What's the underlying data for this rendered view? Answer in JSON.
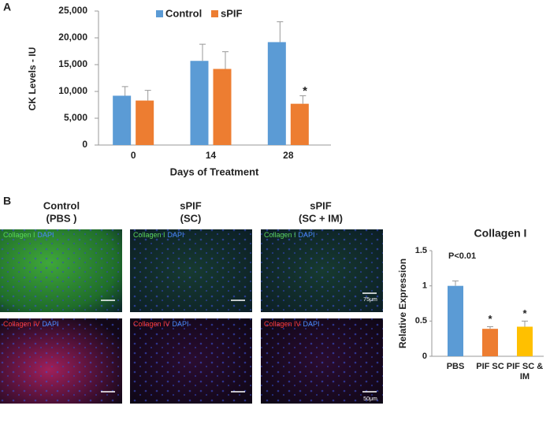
{
  "figure": {
    "panel_labels": [
      "A",
      "B"
    ],
    "columns": [
      {
        "title": "Control",
        "subtitle": "(PBS )"
      },
      {
        "title": "sPIF",
        "subtitle": "(SC)"
      },
      {
        "title": "sPIF",
        "subtitle": "(SC + IM)"
      }
    ],
    "rows": [
      {
        "stain": "Collagen I",
        "counter": "DAPI",
        "scale_bar": "75μm"
      },
      {
        "stain": "Collagen IV",
        "counter": "DAPI",
        "scale_bar": "50μm"
      }
    ]
  },
  "chart_data": [
    {
      "type": "bar",
      "categories": [
        "0",
        "14",
        "28"
      ],
      "series": [
        {
          "name": "Control",
          "color": "#5b9bd5",
          "values": [
            9200,
            15700,
            19200
          ],
          "errors": [
            1700,
            3100,
            3800
          ]
        },
        {
          "name": "sPIF",
          "color": "#ed7d31",
          "values": [
            8300,
            14200,
            7700
          ],
          "errors": [
            1900,
            3200,
            1500
          ]
        }
      ],
      "ylim": [
        0,
        25000
      ],
      "yticks": [
        0,
        {
          "value": 5000,
          "label": "5,000"
        },
        {
          "value": 10000,
          "label": "10,000"
        },
        {
          "value": 15000,
          "label": "15,000"
        },
        {
          "value": 20000,
          "label": "20,000"
        },
        {
          "value": 25000,
          "label": "25,000"
        }
      ],
      "xlabel": "Days of Treatment",
      "ylabel": "CK Levels - IU",
      "legend": "top",
      "annotations": [
        "*"
      ]
    },
    {
      "type": "bar",
      "title": "Collagen I",
      "categories": [
        "PBS",
        "PIF SC",
        "PIF SC & IM"
      ],
      "values": [
        1.0,
        0.39,
        0.42
      ],
      "errors": [
        0.07,
        0.03,
        0.08
      ],
      "colors": [
        "#5b9bd5",
        "#ed7d31",
        "#ffc000"
      ],
      "ylim": [
        0,
        1.5
      ],
      "yticks": [
        0,
        0.5,
        1,
        1.5
      ],
      "ylabel": "Relative Expression",
      "annotations": [
        "P<0.01",
        "*",
        "*"
      ]
    }
  ]
}
